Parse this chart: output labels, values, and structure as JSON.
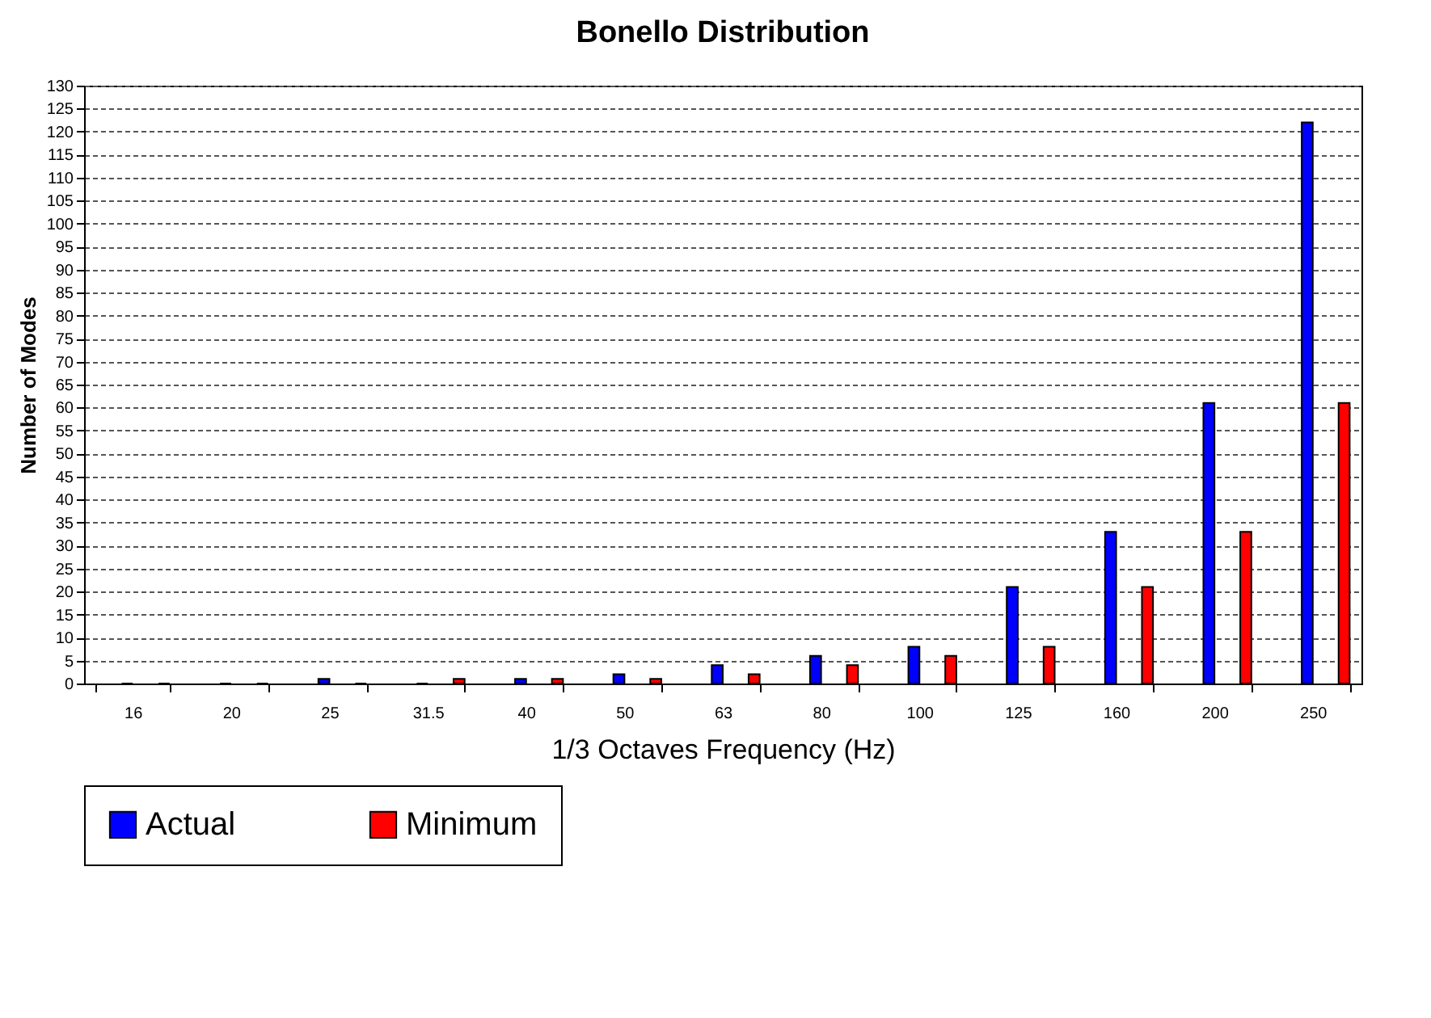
{
  "chart_data": {
    "type": "bar",
    "title": "Bonello Distribution",
    "xlabel": "1/3 Octaves Frequency (Hz)",
    "ylabel": "Number of Modes",
    "categories": [
      "16",
      "20",
      "25",
      "31.5",
      "40",
      "50",
      "63",
      "80",
      "100",
      "125",
      "160",
      "200",
      "250"
    ],
    "series": [
      {
        "name": "Actual",
        "color": "#0000ff",
        "values": [
          0,
          0,
          1,
          0,
          1,
          2,
          4,
          6,
          8,
          21,
          33,
          61,
          122
        ]
      },
      {
        "name": "Minimum",
        "color": "#ff0000",
        "values": [
          0,
          0,
          0,
          1,
          1,
          1,
          2,
          4,
          6,
          8,
          21,
          33,
          61
        ]
      }
    ],
    "ylim": [
      0,
      130
    ],
    "yticks": [
      0,
      5,
      10,
      15,
      20,
      25,
      30,
      35,
      40,
      45,
      50,
      55,
      60,
      65,
      70,
      75,
      80,
      85,
      90,
      95,
      100,
      105,
      110,
      115,
      120,
      125,
      130
    ],
    "grid": "y",
    "legend": "bottom"
  }
}
